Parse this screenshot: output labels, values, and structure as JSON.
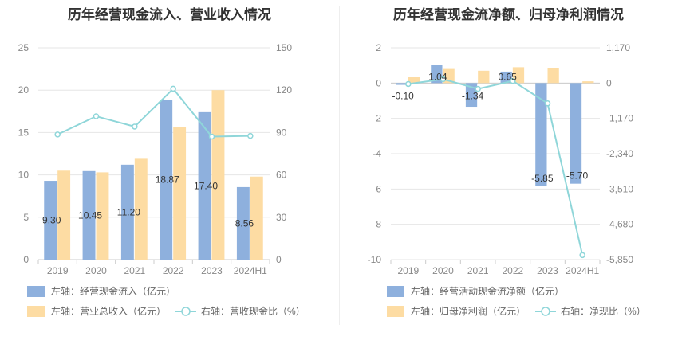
{
  "chart_data": [
    {
      "type": "bar",
      "title": "历年经营现金流入、营业收入情况",
      "categories": [
        "2019",
        "2020",
        "2021",
        "2022",
        "2023",
        "2024H1"
      ],
      "series": [
        {
          "name": "左轴：经营现金流入（亿元）",
          "axis": "left",
          "type": "bar",
          "color": "#8eb0dd",
          "values": [
            9.3,
            10.45,
            11.2,
            18.87,
            17.4,
            8.56
          ],
          "labels": [
            "9.30",
            "10.45",
            "11.20",
            "18.87",
            "17.40",
            "8.56"
          ]
        },
        {
          "name": "左轴：营业总收入（亿元）",
          "axis": "left",
          "type": "bar",
          "color": "#fddca3",
          "values": [
            10.5,
            10.3,
            11.9,
            15.6,
            20.0,
            9.8
          ]
        },
        {
          "name": "右轴：营收现金比（%）",
          "axis": "right",
          "type": "line",
          "color": "#8fd6d9",
          "values": [
            88.6,
            101.5,
            94.2,
            121.0,
            87.1,
            87.6
          ]
        }
      ],
      "ylim": [
        0,
        25
      ],
      "yticks": [
        "25",
        "20",
        "15",
        "10",
        "5",
        "0"
      ],
      "y2lim": [
        0,
        150
      ],
      "y2ticks": [
        "150",
        "120",
        "90",
        "60",
        "30",
        "0"
      ],
      "grid": true,
      "legend_position": "bottom"
    },
    {
      "type": "bar",
      "title": "历年经营现金流净额、归母净利润情况",
      "categories": [
        "2019",
        "2020",
        "2021",
        "2022",
        "2023",
        "2024H1"
      ],
      "series": [
        {
          "name": "左轴：经营活动现金流净额（亿元）",
          "axis": "left",
          "type": "bar",
          "color": "#8eb0dd",
          "values": [
            -0.1,
            1.04,
            -1.34,
            0.65,
            -5.85,
            -5.7
          ],
          "labels": [
            "-0.10",
            "1.04",
            "-1.34",
            "0.65",
            "-5.85",
            "-5.70"
          ]
        },
        {
          "name": "左轴：归母净利润（亿元）",
          "axis": "left",
          "type": "bar",
          "color": "#fddca3",
          "values": [
            0.33,
            0.8,
            0.7,
            0.9,
            0.87,
            0.1
          ]
        },
        {
          "name": "右轴：净现比（%）",
          "axis": "right",
          "type": "line",
          "color": "#8fd6d9",
          "values": [
            -30,
            130,
            -191,
            72,
            -672,
            -5700
          ]
        }
      ],
      "ylim": [
        -10,
        2
      ],
      "yticks": [
        "2",
        "0",
        "-2",
        "-4",
        "-6",
        "-8",
        "-10"
      ],
      "y2lim": [
        -5850,
        1170
      ],
      "y2ticks": [
        "1,170",
        "0",
        "-1,170",
        "-2,340",
        "-3,510",
        "-4,680",
        "-5,850"
      ],
      "grid": true,
      "legend_position": "bottom"
    }
  ]
}
